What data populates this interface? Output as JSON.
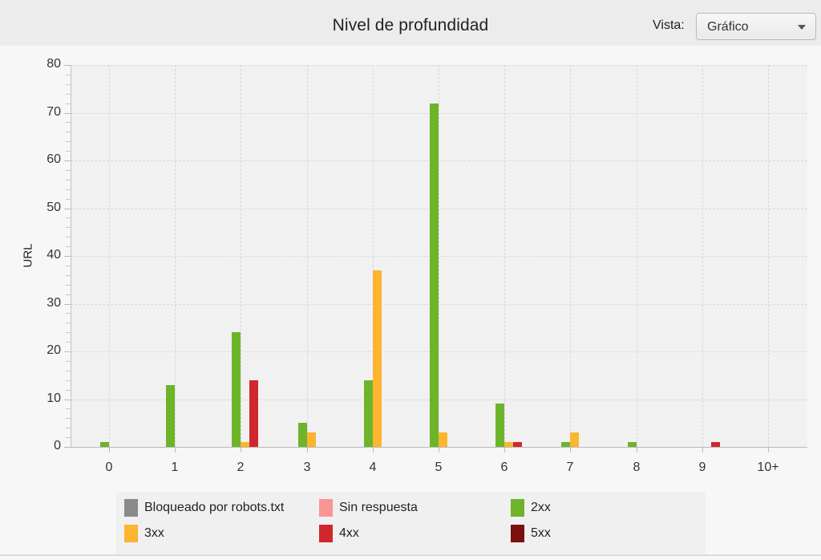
{
  "header": {
    "title": "Nivel de profundidad",
    "vista_label": "Vista:",
    "vista_selected": "Gráfico",
    "dropdown_icon": "chevron-down-icon"
  },
  "colors": {
    "bloqueado": "#8a8a8a",
    "sin_respuesta": "#f99595",
    "2xx": "#6db42a",
    "3xx": "#fbb52f",
    "4xx": "#cf272d",
    "5xx": "#7a1010"
  },
  "chart_data": {
    "type": "bar",
    "title": "Nivel de profundidad",
    "xlabel": "",
    "ylabel": "URL",
    "ylim": [
      0,
      80
    ],
    "yticks": [
      0,
      10,
      20,
      30,
      40,
      50,
      60,
      70,
      80
    ],
    "grid": true,
    "legend_position": "bottom",
    "categories": [
      "0",
      "1",
      "2",
      "3",
      "4",
      "5",
      "6",
      "7",
      "8",
      "9",
      "10+"
    ],
    "series": [
      {
        "name": "Bloqueado por robots.txt",
        "color": "#8a8a8a",
        "values": [
          0,
          0,
          0,
          0,
          0,
          0,
          0,
          0,
          0,
          0,
          0
        ]
      },
      {
        "name": "Sin respuesta",
        "color": "#f99595",
        "values": [
          0,
          0,
          0,
          0,
          0,
          0,
          0,
          0,
          0,
          0,
          0
        ]
      },
      {
        "name": "2xx",
        "color": "#6db42a",
        "values": [
          1,
          13,
          24,
          5,
          14,
          72,
          9,
          1,
          1,
          0,
          0
        ]
      },
      {
        "name": "3xx",
        "color": "#fbb52f",
        "values": [
          0,
          0,
          1,
          3,
          37,
          3,
          1,
          3,
          0,
          0,
          0
        ]
      },
      {
        "name": "4xx",
        "color": "#cf272d",
        "values": [
          0,
          0,
          14,
          0,
          0,
          0,
          1,
          0,
          0,
          1,
          0
        ]
      },
      {
        "name": "5xx",
        "color": "#7a1010",
        "values": [
          0,
          0,
          0,
          0,
          0,
          0,
          0,
          0,
          0,
          0,
          0
        ]
      }
    ]
  },
  "legend": {
    "items": [
      {
        "label": "Bloqueado por robots.txt",
        "color": "#8a8a8a"
      },
      {
        "label": "Sin respuesta",
        "color": "#f99595"
      },
      {
        "label": "2xx",
        "color": "#6db42a"
      },
      {
        "label": "3xx",
        "color": "#fbb52f"
      },
      {
        "label": "4xx",
        "color": "#cf272d"
      },
      {
        "label": "5xx",
        "color": "#7a1010"
      }
    ]
  }
}
